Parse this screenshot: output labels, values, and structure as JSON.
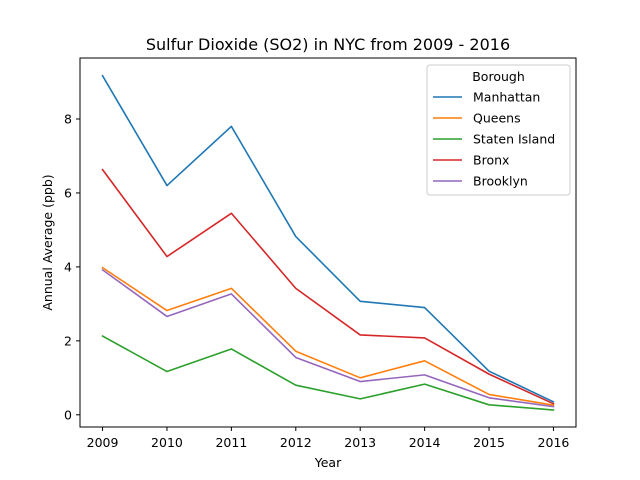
{
  "chart_data": {
    "type": "line",
    "title": "Sulfur Dioxide (SO2) in NYC from 2009 - 2016",
    "xlabel": "Year",
    "ylabel": "Annual Average (ppb)",
    "x": [
      2009,
      2010,
      2011,
      2012,
      2013,
      2014,
      2015,
      2016
    ],
    "x_tick_labels": [
      "2009",
      "2010",
      "2011",
      "2012",
      "2013",
      "2014",
      "2015",
      "2016"
    ],
    "y_ticks": [
      0,
      2,
      4,
      6,
      8
    ],
    "y_tick_labels": [
      "0",
      "2",
      "4",
      "6",
      "8"
    ],
    "xlim": [
      2008.65,
      2016.35
    ],
    "ylim": [
      -0.33,
      9.65
    ],
    "grid": false,
    "legend": {
      "title": "Borough",
      "placement": "upper right"
    },
    "series": [
      {
        "name": "Manhattan",
        "color": "#1f77b4",
        "values": [
          9.17,
          6.2,
          7.8,
          4.82,
          3.07,
          2.9,
          1.18,
          0.35
        ]
      },
      {
        "name": "Queens",
        "color": "#ff7f0e",
        "values": [
          3.98,
          2.82,
          3.42,
          1.72,
          1.0,
          1.46,
          0.55,
          0.26
        ]
      },
      {
        "name": "Staten Island",
        "color": "#2ca02c",
        "values": [
          2.13,
          1.17,
          1.78,
          0.8,
          0.43,
          0.83,
          0.27,
          0.13
        ]
      },
      {
        "name": "Bronx",
        "color": "#d62728",
        "values": [
          6.63,
          4.28,
          5.45,
          3.42,
          2.16,
          2.08,
          1.1,
          0.3
        ]
      },
      {
        "name": "Brooklyn",
        "color": "#9467bd",
        "values": [
          3.92,
          2.66,
          3.27,
          1.55,
          0.9,
          1.08,
          0.46,
          0.22
        ]
      }
    ]
  }
}
